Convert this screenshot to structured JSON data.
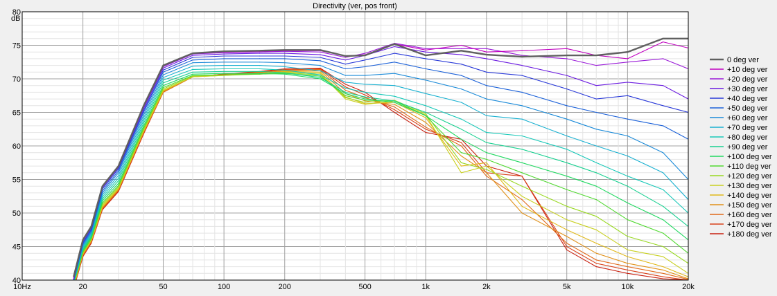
{
  "chart_data": {
    "type": "line",
    "title": "Directivity (ver, pos front)",
    "ylabel": "dB",
    "xlabel": "",
    "x_scale": "log",
    "xlim": [
      10,
      20000
    ],
    "ylim": [
      40,
      80
    ],
    "grid": true,
    "legend_position": "right",
    "y_ticks": [
      {
        "value": 80,
        "label": "80"
      },
      {
        "value": 75,
        "label": "75"
      },
      {
        "value": 70,
        "label": "70"
      },
      {
        "value": 65,
        "label": "65"
      },
      {
        "value": 60,
        "label": "60"
      },
      {
        "value": 55,
        "label": "55"
      },
      {
        "value": 50,
        "label": "50"
      },
      {
        "value": 45,
        "label": "45"
      },
      {
        "value": 40,
        "label": "40"
      }
    ],
    "x_ticks": [
      {
        "value": 10,
        "label": "10Hz"
      },
      {
        "value": 20,
        "label": "20"
      },
      {
        "value": 50,
        "label": "50"
      },
      {
        "value": 100,
        "label": "100"
      },
      {
        "value": 200,
        "label": "200"
      },
      {
        "value": 500,
        "label": "500"
      },
      {
        "value": 1000,
        "label": "1k"
      },
      {
        "value": 2000,
        "label": "2k"
      },
      {
        "value": 5000,
        "label": "5k"
      },
      {
        "value": 10000,
        "label": "10k"
      },
      {
        "value": 20000,
        "label": "20k"
      }
    ],
    "x": [
      18,
      20,
      22,
      25,
      30,
      40,
      50,
      70,
      100,
      150,
      200,
      300,
      400,
      500,
      700,
      1000,
      1500,
      2000,
      3000,
      5000,
      7000,
      10000,
      15000,
      20000
    ],
    "series": [
      {
        "name": "0 deg ver",
        "color": "#606060",
        "bold": true,
        "values": [
          40.5,
          46,
          48,
          54,
          57,
          66,
          72,
          73.8,
          74.1,
          74.2,
          74.3,
          74.3,
          73.4,
          73.5,
          75.2,
          73.5,
          74.2,
          73.6,
          73.3,
          73.5,
          73.5,
          74,
          76,
          76
        ]
      },
      {
        "name": "+10 deg ver",
        "color": "#c000c0",
        "values": [
          40.4,
          46,
          48,
          54,
          57,
          66,
          72,
          73.8,
          74,
          74.1,
          74.2,
          74.2,
          73.4,
          73.6,
          75.2,
          74.3,
          75,
          74,
          74.2,
          74.5,
          73.5,
          73,
          75.5,
          74.6
        ]
      },
      {
        "name": "+20 deg ver",
        "color": "#9a1ad8",
        "values": [
          40.3,
          46,
          48,
          54,
          57,
          65.8,
          71.8,
          73.7,
          73.9,
          74,
          74.1,
          74,
          73.2,
          73.8,
          75.3,
          74.5,
          74.5,
          74.5,
          73.5,
          73,
          72,
          72.5,
          73,
          71.5
        ]
      },
      {
        "name": "+30 deg ver",
        "color": "#6a1ae0",
        "values": [
          40.2,
          45.8,
          47.8,
          53.8,
          56.8,
          65.6,
          71.6,
          73.5,
          73.7,
          73.8,
          73.8,
          73.6,
          72.8,
          73.5,
          74.8,
          74,
          73.6,
          73,
          72,
          70.5,
          69,
          69.5,
          69,
          67
        ]
      },
      {
        "name": "+40 deg ver",
        "color": "#2838d8",
        "values": [
          40.1,
          45.6,
          47.6,
          53.6,
          56.6,
          65.3,
          71.3,
          73.2,
          73.4,
          73.4,
          73.4,
          73.2,
          72.2,
          72.8,
          73.8,
          73,
          72.2,
          71,
          70.5,
          68.5,
          67,
          67.5,
          66,
          65
        ]
      },
      {
        "name": "+50 deg ver",
        "color": "#1a60d8",
        "values": [
          40,
          45.4,
          47.4,
          53.3,
          56.3,
          65,
          71,
          72.8,
          73,
          73,
          73,
          72.7,
          71.5,
          71.8,
          72.5,
          71.5,
          70.5,
          69,
          68,
          66,
          65,
          64,
          63,
          61
        ]
      },
      {
        "name": "+60 deg ver",
        "color": "#1a8ad8",
        "values": [
          39.9,
          45.2,
          47.2,
          53,
          56,
          64.6,
          70.6,
          72.4,
          72.5,
          72.5,
          72.4,
          72,
          70.5,
          70.5,
          70.8,
          69.8,
          68.5,
          67,
          66,
          64,
          62.5,
          61.5,
          59,
          55
        ]
      },
      {
        "name": "+70 deg ver",
        "color": "#18b0d0",
        "values": [
          39.8,
          45,
          47,
          52.7,
          55.6,
          64.2,
          70.2,
          71.9,
          72,
          72,
          71.8,
          71.2,
          69.5,
          69.2,
          69,
          67.8,
          66.5,
          64.5,
          64,
          61.5,
          60,
          58.5,
          56,
          52
        ]
      },
      {
        "name": "+80 deg ver",
        "color": "#18c8b8",
        "values": [
          39.7,
          44.8,
          46.8,
          52.4,
          55.2,
          63.8,
          69.8,
          71.4,
          71.5,
          71.5,
          71.3,
          70.6,
          68.6,
          68,
          67.4,
          66,
          64,
          62,
          61.5,
          59.5,
          57.5,
          55.5,
          53.5,
          50
        ]
      },
      {
        "name": "+90 deg ver",
        "color": "#18d090",
        "values": [
          39.6,
          44.6,
          46.6,
          52.1,
          54.8,
          63.4,
          69.4,
          71,
          71.1,
          71.1,
          70.9,
          70.2,
          68,
          67.3,
          66.7,
          65,
          62.5,
          60.5,
          59.5,
          57.5,
          56,
          54,
          51,
          48
        ]
      },
      {
        "name": "+100 deg ver",
        "color": "#20d860",
        "values": [
          39.5,
          44.4,
          46.4,
          51.8,
          54.4,
          63,
          69,
          70.7,
          70.8,
          70.8,
          70.7,
          70,
          67.8,
          67,
          66.5,
          64.5,
          61,
          59,
          57.5,
          55.5,
          54,
          51.5,
          49,
          46
        ]
      },
      {
        "name": "+110 deg ver",
        "color": "#50d830",
        "values": [
          39.4,
          44.2,
          46.2,
          51.5,
          54.1,
          62.7,
          68.7,
          70.5,
          70.6,
          70.7,
          70.8,
          70.4,
          67.5,
          66.8,
          66.7,
          64.5,
          59,
          58,
          56,
          53.5,
          52,
          49,
          47,
          44
        ]
      },
      {
        "name": "+120 deg ver",
        "color": "#98d820",
        "values": [
          39.3,
          44.1,
          46.1,
          51.3,
          53.9,
          62.5,
          68.5,
          70.4,
          70.6,
          70.7,
          70.9,
          70.6,
          67.2,
          66.5,
          66.8,
          64.8,
          57.5,
          56.5,
          54,
          51,
          49.5,
          46.5,
          45,
          42.5
        ]
      },
      {
        "name": "+130 deg ver",
        "color": "#c8d020",
        "values": [
          39.2,
          44,
          46,
          51.1,
          53.7,
          62.3,
          68.3,
          70.3,
          70.5,
          70.7,
          71,
          70.8,
          67,
          66.2,
          66.7,
          64.6,
          56,
          57,
          52.5,
          49,
          47.5,
          44.5,
          43.5,
          41
        ]
      },
      {
        "name": "+140 deg ver",
        "color": "#e0b818",
        "values": [
          39.1,
          43.9,
          45.9,
          50.9,
          53.6,
          62.2,
          68.2,
          70.3,
          70.5,
          70.8,
          71.1,
          71,
          67.3,
          66.3,
          66.5,
          64.2,
          57,
          57.5,
          51,
          47.5,
          45.5,
          43.5,
          42,
          40.5
        ]
      },
      {
        "name": "+150 deg ver",
        "color": "#e09018",
        "values": [
          39,
          43.8,
          45.8,
          50.8,
          53.5,
          62.1,
          68.1,
          70.3,
          70.6,
          70.9,
          71.2,
          71.2,
          67.8,
          66.7,
          66.2,
          63.5,
          58.5,
          56,
          50,
          46.5,
          44,
          42.5,
          41.5,
          40.2
        ]
      },
      {
        "name": "+160 deg ver",
        "color": "#e06818",
        "values": [
          38.9,
          43.7,
          45.7,
          50.7,
          53.4,
          62,
          68,
          70.3,
          70.6,
          71,
          71.3,
          71.4,
          68.3,
          67.2,
          65.8,
          62.8,
          60,
          55.5,
          52,
          45.5,
          43,
          42,
          41,
          40.1
        ]
      },
      {
        "name": "+170 deg ver",
        "color": "#d84018",
        "values": [
          38.8,
          43.6,
          45.6,
          50.6,
          53.3,
          61.9,
          68,
          70.3,
          70.7,
          71,
          71.4,
          71.5,
          68.8,
          67.6,
          65.4,
          62.5,
          60.5,
          56,
          55.5,
          45,
          42.5,
          41.5,
          40.5,
          40
        ]
      },
      {
        "name": "+180 deg ver",
        "color": "#c82010",
        "values": [
          38.7,
          43.5,
          45.5,
          50.5,
          53.2,
          61.8,
          68,
          70.3,
          70.7,
          71.1,
          71.5,
          71.6,
          69.2,
          68,
          65,
          62,
          61,
          57,
          55.5,
          44.5,
          42,
          41,
          40.2,
          40
        ]
      }
    ]
  }
}
